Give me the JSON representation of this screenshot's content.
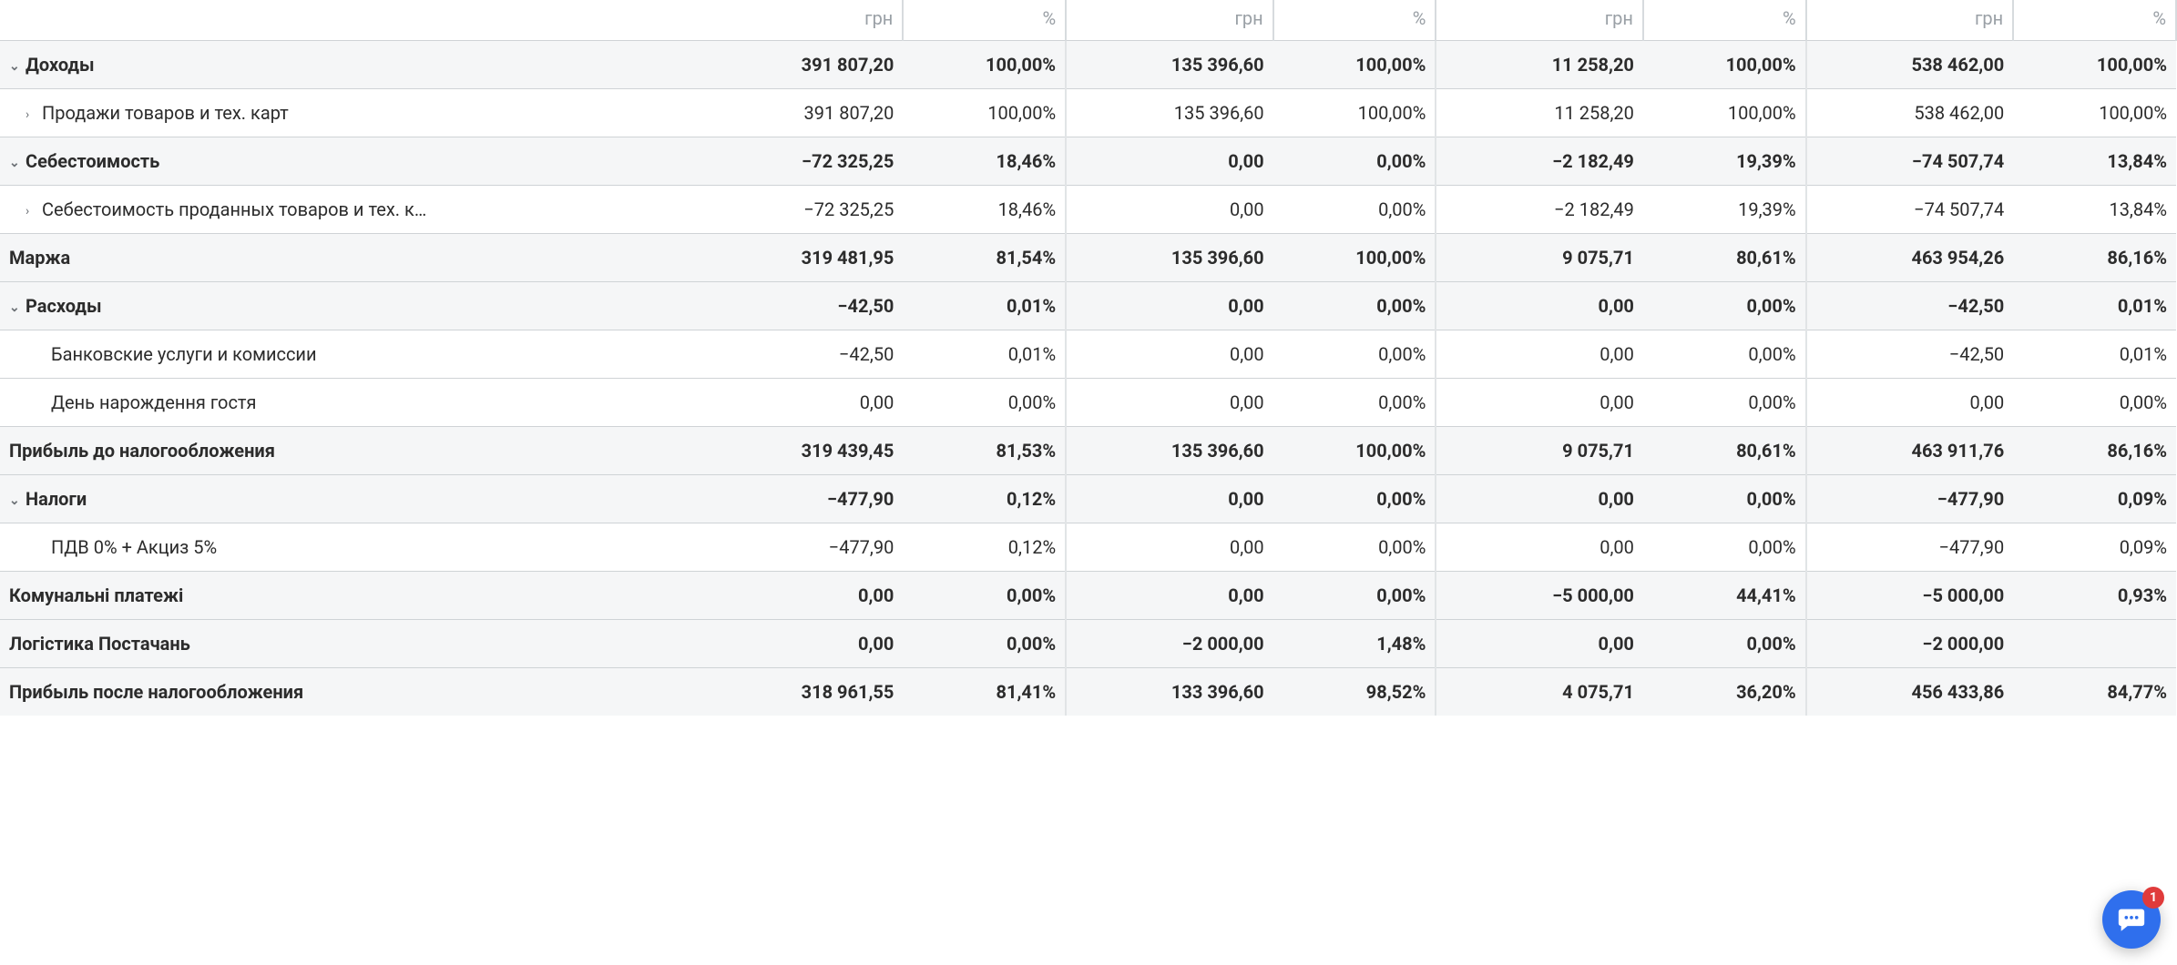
{
  "header": {
    "currency_label": "грн",
    "percent_label": "%",
    "groups": 4
  },
  "rows": [
    {
      "id": "income",
      "label": "Доходы",
      "bold": true,
      "shade": true,
      "indent": 0,
      "chev": "v",
      "cells": [
        [
          "391 807,20",
          "100,00%"
        ],
        [
          "135 396,60",
          "100,00%"
        ],
        [
          "11 258,20",
          "100,00%"
        ],
        [
          "538 462,00",
          "100,00%"
        ]
      ]
    },
    {
      "id": "sales",
      "label": "Продажи товаров и тех. карт",
      "bold": false,
      "shade": false,
      "indent": 1,
      "chev": ">",
      "cells": [
        [
          "391 807,20",
          "100,00%"
        ],
        [
          "135 396,60",
          "100,00%"
        ],
        [
          "11 258,20",
          "100,00%"
        ],
        [
          "538 462,00",
          "100,00%"
        ]
      ]
    },
    {
      "id": "cogs",
      "label": "Себестоимость",
      "bold": true,
      "shade": true,
      "indent": 0,
      "chev": "v",
      "cells": [
        [
          "−72 325,25",
          "18,46%"
        ],
        [
          "0,00",
          "0,00%"
        ],
        [
          "−2 182,49",
          "19,39%"
        ],
        [
          "−74 507,74",
          "13,84%"
        ]
      ]
    },
    {
      "id": "cogs-sold",
      "label": "Себестоимость проданных товаров и тех. к…",
      "bold": false,
      "shade": false,
      "indent": 1,
      "chev": ">",
      "cells": [
        [
          "−72 325,25",
          "18,46%"
        ],
        [
          "0,00",
          "0,00%"
        ],
        [
          "−2 182,49",
          "19,39%"
        ],
        [
          "−74 507,74",
          "13,84%"
        ]
      ]
    },
    {
      "id": "margin",
      "label": "Маржа",
      "bold": true,
      "shade": true,
      "indent": 0,
      "chev": "",
      "cells": [
        [
          "319 481,95",
          "81,54%"
        ],
        [
          "135 396,60",
          "100,00%"
        ],
        [
          "9 075,71",
          "80,61%"
        ],
        [
          "463 954,26",
          "86,16%"
        ]
      ]
    },
    {
      "id": "expenses",
      "label": "Расходы",
      "bold": true,
      "shade": true,
      "indent": 0,
      "chev": "v",
      "cells": [
        [
          "−42,50",
          "0,01%"
        ],
        [
          "0,00",
          "0,00%"
        ],
        [
          "0,00",
          "0,00%"
        ],
        [
          "−42,50",
          "0,01%"
        ]
      ]
    },
    {
      "id": "bank",
      "label": "Банковские услуги и комиссии",
      "bold": false,
      "shade": false,
      "indent": 2,
      "chev": "",
      "cells": [
        [
          "−42,50",
          "0,01%"
        ],
        [
          "0,00",
          "0,00%"
        ],
        [
          "0,00",
          "0,00%"
        ],
        [
          "−42,50",
          "0,01%"
        ]
      ]
    },
    {
      "id": "bday",
      "label": "День нарождення гостя",
      "bold": false,
      "shade": false,
      "indent": 2,
      "chev": "",
      "cells": [
        [
          "0,00",
          "0,00%"
        ],
        [
          "0,00",
          "0,00%"
        ],
        [
          "0,00",
          "0,00%"
        ],
        [
          "0,00",
          "0,00%"
        ]
      ]
    },
    {
      "id": "profit-before-tax",
      "label": "Прибыль до налогообложения",
      "bold": true,
      "shade": true,
      "indent": 0,
      "chev": "",
      "cells": [
        [
          "319 439,45",
          "81,53%"
        ],
        [
          "135 396,60",
          "100,00%"
        ],
        [
          "9 075,71",
          "80,61%"
        ],
        [
          "463 911,76",
          "86,16%"
        ]
      ]
    },
    {
      "id": "taxes",
      "label": "Налоги",
      "bold": true,
      "shade": true,
      "indent": 0,
      "chev": "v",
      "cells": [
        [
          "−477,90",
          "0,12%"
        ],
        [
          "0,00",
          "0,00%"
        ],
        [
          "0,00",
          "0,00%"
        ],
        [
          "−477,90",
          "0,09%"
        ]
      ]
    },
    {
      "id": "vat-excise",
      "label": "ПДВ 0% + Акциз 5%",
      "bold": false,
      "shade": false,
      "indent": 2,
      "chev": "",
      "cells": [
        [
          "−477,90",
          "0,12%"
        ],
        [
          "0,00",
          "0,00%"
        ],
        [
          "0,00",
          "0,00%"
        ],
        [
          "−477,90",
          "0,09%"
        ]
      ]
    },
    {
      "id": "utilities",
      "label": "Комунальні платежі",
      "bold": true,
      "shade": true,
      "indent": 0,
      "chev": "",
      "cells": [
        [
          "0,00",
          "0,00%"
        ],
        [
          "0,00",
          "0,00%"
        ],
        [
          "−5 000,00",
          "44,41%"
        ],
        [
          "−5 000,00",
          "0,93%"
        ]
      ]
    },
    {
      "id": "logistics",
      "label": "Логістика Постачань",
      "bold": true,
      "shade": true,
      "indent": 0,
      "chev": "",
      "cells": [
        [
          "0,00",
          "0,00%"
        ],
        [
          "−2 000,00",
          "1,48%"
        ],
        [
          "0,00",
          "0,00%"
        ],
        [
          "−2 000,00",
          ""
        ]
      ]
    },
    {
      "id": "profit-after-tax",
      "label": "Прибыль после налогообложения",
      "bold": true,
      "shade": true,
      "indent": 0,
      "chev": "",
      "cells": [
        [
          "318 961,55",
          "81,41%"
        ],
        [
          "133 396,60",
          "98,52%"
        ],
        [
          "4 075,71",
          "36,20%"
        ],
        [
          "456 433,86",
          "84,77%"
        ]
      ]
    }
  ],
  "chat_notification": "1"
}
